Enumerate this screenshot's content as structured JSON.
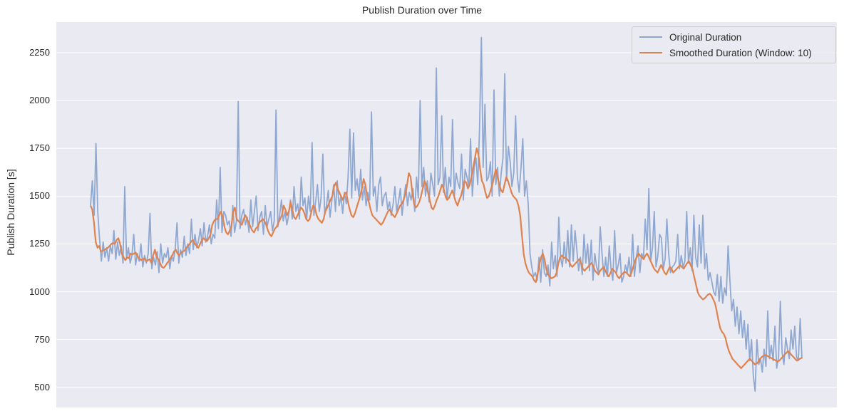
{
  "chart_data": {
    "type": "line",
    "title": "Publish Duration over Time",
    "xlabel": "",
    "ylabel": "Publish Duration [s]",
    "ylim": [
      395,
      2410
    ],
    "yticks": [
      500,
      750,
      1000,
      1250,
      1500,
      1750,
      2000,
      2250
    ],
    "grid": true,
    "legend_position": "upper right",
    "x_ticks_visible": false,
    "series": [
      {
        "name": "Original Duration",
        "color": "#8fa8d2",
        "line_width": 2,
        "values": [
          1450,
          1580,
          1400,
          1775,
          1420,
          1280,
          1160,
          1260,
          1180,
          1230,
          1160,
          1240,
          1200,
          1320,
          1170,
          1260,
          1190,
          1240,
          1150,
          1550,
          1170,
          1230,
          1150,
          1190,
          1300,
          1140,
          1200,
          1160,
          1250,
          1130,
          1190,
          1150,
          1200,
          1410,
          1120,
          1180,
          1140,
          1210,
          1100,
          1250,
          1150,
          1200,
          1180,
          1230,
          1120,
          1190,
          1160,
          1220,
          1360,
          1150,
          1220,
          1180,
          1290,
          1190,
          1250,
          1200,
          1380,
          1220,
          1300,
          1230,
          1270,
          1330,
          1240,
          1360,
          1260,
          1290,
          1350,
          1250,
          1300,
          1280,
          1480,
          1330,
          1650,
          1310,
          1420,
          1400,
          1350,
          1370,
          1290,
          1450,
          1310,
          1370,
          1995,
          1330,
          1400,
          1430,
          1350,
          1390,
          1310,
          1480,
          1340,
          1420,
          1500,
          1320,
          1390,
          1420,
          1300,
          1450,
          1340,
          1380,
          1420,
          1320,
          1370,
          1950,
          1340,
          1400,
          1480,
          1370,
          1420,
          1350,
          1400,
          1480,
          1380,
          1550,
          1420,
          1460,
          1380,
          1600,
          1450,
          1490,
          1380,
          1500,
          1420,
          1780,
          1400,
          1470,
          1560,
          1420,
          1490,
          1720,
          1410,
          1450,
          1530,
          1390,
          1480,
          1560,
          1420,
          1580,
          1450,
          1500,
          1410,
          1520,
          1460,
          1600,
          1850,
          1490,
          1830,
          1530,
          1590,
          1500,
          1640,
          1480,
          1550,
          1450,
          1520,
          1480,
          1940,
          1500,
          1550,
          1420,
          1560,
          1600,
          1450,
          1500,
          1520,
          1430,
          1470,
          1400,
          1460,
          1550,
          1420,
          1470,
          1540,
          1400,
          1490,
          1560,
          1450,
          1520,
          1480,
          1540,
          1420,
          1600,
          1490,
          2000,
          1550,
          1650,
          1500,
          1580,
          1470,
          1620,
          1560,
          1500,
          2170,
          1560,
          1600,
          1920,
          1520,
          1650,
          1480,
          1600,
          1550,
          1900,
          1500,
          1620,
          1570,
          1540,
          1720,
          1480,
          1640,
          1600,
          1550,
          1800,
          1500,
          1650,
          1700,
          1560,
          1850,
          2330,
          1650,
          1980,
          1580,
          1600,
          1680,
          1500,
          2055,
          1560,
          1650,
          1500,
          1620,
          1700,
          2140,
          1580,
          1760,
          1680,
          1550,
          1620,
          1920,
          1600,
          1520,
          1650,
          1800,
          1500,
          1580,
          1460,
          1200,
          1130,
          1080,
          1100,
          1060,
          1180,
          1050,
          1220,
          1100,
          1080,
          1140,
          1030,
          1260,
          1120,
          1190,
          1080,
          1390,
          1180,
          1130,
          1260,
          1150,
          1320,
          1130,
          1350,
          1160,
          1320,
          1220,
          1110,
          1180,
          1090,
          1300,
          1150,
          1250,
          1110,
          1270,
          1060,
          1200,
          1130,
          1100,
          1340,
          1200,
          1080,
          1180,
          1080,
          1240,
          1120,
          1060,
          1320,
          1100,
          1140,
          1200,
          1050,
          1080,
          1140,
          1100,
          1180,
          1080,
          1300,
          1080,
          1180,
          1240,
          1100,
          1200,
          1180,
          1380,
          1220,
          1540,
          1160,
          1230,
          1420,
          1130,
          1190,
          1300,
          1280,
          1120,
          1170,
          1380,
          1200,
          1100,
          1130,
          1140,
          1160,
          1300,
          1120,
          1190,
          1130,
          1160,
          1420,
          1150,
          1230,
          1110,
          1400,
          1180,
          1130,
          1350,
          1150,
          1400,
          1120,
          1200,
          1060,
          1100,
          1050,
          1000,
          980,
          1090,
          950,
          1080,
          940,
          1020,
          980,
          1240,
          1060,
          900,
          960,
          820,
          920,
          780,
          900,
          760,
          850,
          700,
          830,
          640,
          750,
          560,
          480,
          750,
          620,
          650,
          580,
          700,
          610,
          900,
          650,
          720,
          640,
          820,
          600,
          660,
          950,
          680,
          620,
          760,
          700,
          650,
          800,
          700,
          820,
          660,
          640,
          860,
          650
        ]
      },
      {
        "name": "Smoothed Duration (Window: 10)",
        "color": "#e0824e",
        "line_width": 2,
        "values": [
          1450,
          1430,
          1360,
          1260,
          1230,
          1240,
          1210,
          1215,
          1220,
          1225,
          1230,
          1240,
          1250,
          1255,
          1250,
          1270,
          1280,
          1250,
          1200,
          1180,
          1165,
          1180,
          1175,
          1200,
          1195,
          1200,
          1205,
          1185,
          1175,
          1165,
          1170,
          1175,
          1160,
          1165,
          1170,
          1150,
          1190,
          1220,
          1180,
          1170,
          1150,
          1130,
          1125,
          1135,
          1150,
          1160,
          1175,
          1190,
          1210,
          1220,
          1200,
          1190,
          1205,
          1210,
          1215,
          1230,
          1240,
          1250,
          1265,
          1270,
          1250,
          1240,
          1230,
          1250,
          1270,
          1280,
          1270,
          1265,
          1280,
          1300,
          1350,
          1370,
          1380,
          1380,
          1400,
          1420,
          1390,
          1340,
          1310,
          1300,
          1320,
          1340,
          1420,
          1440,
          1380,
          1370,
          1360,
          1350,
          1380,
          1400,
          1380,
          1360,
          1340,
          1320,
          1310,
          1330,
          1340,
          1360,
          1370,
          1380,
          1370,
          1350,
          1320,
          1300,
          1290,
          1310,
          1330,
          1340,
          1360,
          1380,
          1400,
          1450,
          1430,
          1400,
          1420,
          1470,
          1430,
          1390,
          1380,
          1400,
          1420,
          1440,
          1430,
          1410,
          1380,
          1370,
          1380,
          1420,
          1450,
          1440,
          1400,
          1380,
          1370,
          1360,
          1380,
          1420,
          1440,
          1460,
          1480,
          1500,
          1550,
          1570,
          1540,
          1520,
          1500,
          1480,
          1510,
          1520,
          1470,
          1430,
          1400,
          1390,
          1410,
          1440,
          1470,
          1500,
          1540,
          1590,
          1560,
          1500,
          1470,
          1430,
          1400,
          1390,
          1380,
          1370,
          1360,
          1350,
          1360,
          1380,
          1400,
          1420,
          1430,
          1410,
          1400,
          1390,
          1410,
          1430,
          1450,
          1460,
          1480,
          1510,
          1560,
          1620,
          1600,
          1520,
          1460,
          1440,
          1450,
          1470,
          1500,
          1540,
          1580,
          1560,
          1520,
          1480,
          1440,
          1430,
          1450,
          1480,
          1500,
          1530,
          1560,
          1540,
          1500,
          1480,
          1490,
          1510,
          1530,
          1500,
          1470,
          1450,
          1480,
          1500,
          1540,
          1580,
          1570,
          1540,
          1560,
          1600,
          1650,
          1700,
          1750,
          1720,
          1640,
          1580,
          1560,
          1520,
          1490,
          1500,
          1530,
          1560,
          1600,
          1640,
          1600,
          1560,
          1530,
          1520,
          1560,
          1600,
          1580,
          1550,
          1520,
          1500,
          1490,
          1480,
          1450,
          1400,
          1300,
          1200,
          1150,
          1120,
          1100,
          1090,
          1080,
          1060,
          1050,
          1090,
          1140,
          1180,
          1200,
          1170,
          1120,
          1090,
          1080,
          1070,
          1075,
          1080,
          1100,
          1150,
          1180,
          1190,
          1175,
          1180,
          1170,
          1160,
          1140,
          1130,
          1140,
          1150,
          1160,
          1170,
          1150,
          1120,
          1110,
          1120,
          1130,
          1140,
          1150,
          1135,
          1110,
          1100,
          1090,
          1110,
          1120,
          1130,
          1110,
          1090,
          1080,
          1100,
          1120,
          1110,
          1100,
          1080,
          1070,
          1085,
          1095,
          1105,
          1100,
          1090,
          1080,
          1100,
          1130,
          1160,
          1180,
          1200,
          1190,
          1180,
          1170,
          1190,
          1200,
          1180,
          1160,
          1140,
          1120,
          1110,
          1100,
          1120,
          1140,
          1120,
          1100,
          1090,
          1110,
          1130,
          1120,
          1100,
          1110,
          1120,
          1130,
          1140,
          1130,
          1120,
          1135,
          1150,
          1160,
          1140,
          1120,
          1080,
          1040,
          1000,
          980,
          970,
          960,
          965,
          975,
          985,
          990,
          980,
          960,
          940,
          900,
          850,
          810,
          790,
          780,
          760,
          720,
          690,
          670,
          650,
          640,
          630,
          620,
          610,
          600,
          610,
          620,
          630,
          640,
          650,
          640,
          630,
          620,
          625,
          635,
          650,
          660,
          665,
          670,
          665,
          660,
          655,
          650,
          645,
          640,
          635,
          640,
          650,
          660,
          670,
          680,
          690,
          680,
          670,
          660,
          650,
          640,
          645,
          650,
          655
        ]
      }
    ]
  },
  "legend": {
    "items": [
      {
        "label": "Original Duration",
        "color": "#8fa8d2"
      },
      {
        "label": "Smoothed Duration (Window: 10)",
        "color": "#e0824e"
      }
    ]
  },
  "plot": {
    "background": "#eaeaf2",
    "grid_color": "#ffffff"
  }
}
